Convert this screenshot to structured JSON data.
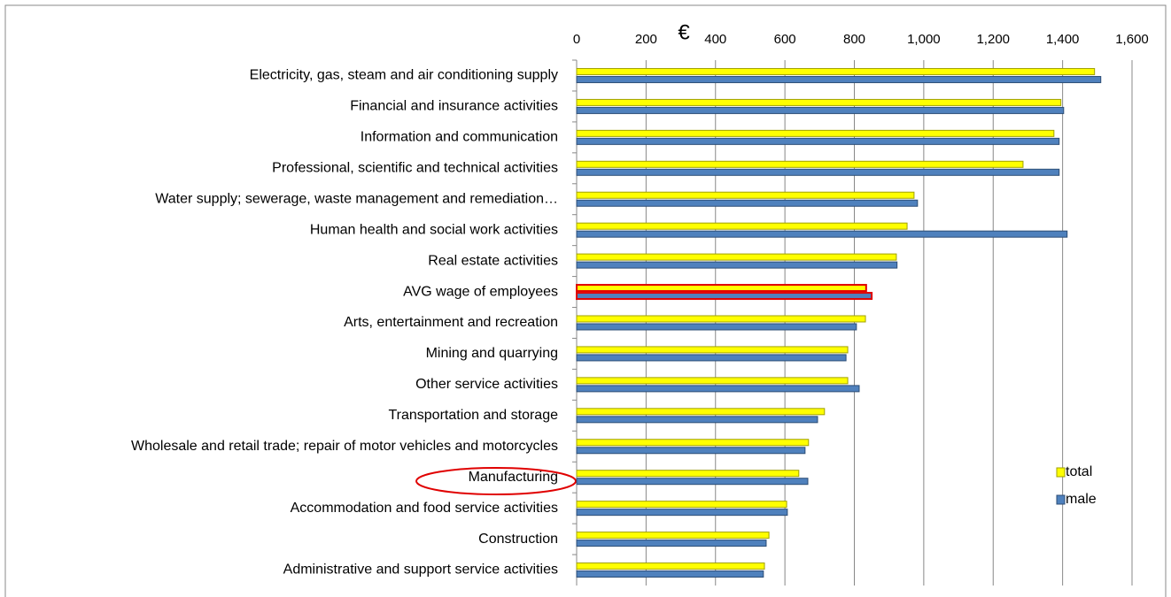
{
  "chart_data": {
    "type": "bar",
    "orientation": "horizontal",
    "x_label": "€",
    "categories": [
      "Electricity, gas, steam and air conditioning supply",
      "Financial and insurance activities",
      "Information and communication",
      "Professional, scientific and technical activities",
      "Water supply; sewerage, waste management and remediation…",
      "Human health and social work activities",
      "Real estate activities",
      "AVG wage of employees",
      "Arts, entertainment and recreation",
      "Mining and quarrying",
      "Other service activities",
      "Transportation and storage",
      "Wholesale and retail trade; repair of motor vehicles and motorcycles",
      "Manufacturing",
      "Accommodation and food service activities",
      "Construction",
      "Administrative and support service activities"
    ],
    "series": [
      {
        "name": "total",
        "color": "#ffff00",
        "values": [
          1492,
          1395,
          1375,
          1286,
          972,
          952,
          921,
          834,
          832,
          781,
          781,
          714,
          668,
          640,
          605,
          554,
          541
        ]
      },
      {
        "name": "male",
        "color": "#4f81bd",
        "values": [
          1510,
          1403,
          1390,
          1390,
          982,
          1413,
          923,
          850,
          806,
          776,
          814,
          694,
          658,
          666,
          607,
          546,
          538
        ]
      }
    ],
    "xlim": [
      0,
      1600
    ],
    "xticks": [
      0,
      200,
      400,
      600,
      800,
      {
        "value": 1000,
        "label": "1,000"
      },
      {
        "value": 1200,
        "label": "1,200"
      },
      {
        "value": 1400,
        "label": "1,400"
      },
      {
        "value": 1600,
        "label": "1,600"
      }
    ],
    "grid": true,
    "legend": "right"
  }
}
